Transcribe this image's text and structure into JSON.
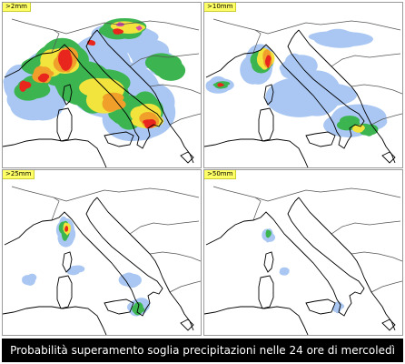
{
  "panels": [
    {
      "label": ">2mm",
      "level": 0
    },
    {
      "label": ">10mm",
      "level": 1
    },
    {
      "label": ">25mm",
      "level": 2
    },
    {
      "label": ">50mm",
      "level": 3
    }
  ],
  "footer": {
    "caption": "Probabilità superamento soglia precipitazioni nelle 24 ore di mercoledì"
  },
  "colors": {
    "lightblue": "#a9c7f2",
    "blue": "#5b86e3",
    "green": "#3cb550",
    "lightgreen": "#8ad06b",
    "yellow": "#f2e43c",
    "orange": "#f0a02a",
    "red": "#e8261d",
    "magenta": "#d54aa8",
    "coast": "#000000",
    "border": "#555555"
  }
}
